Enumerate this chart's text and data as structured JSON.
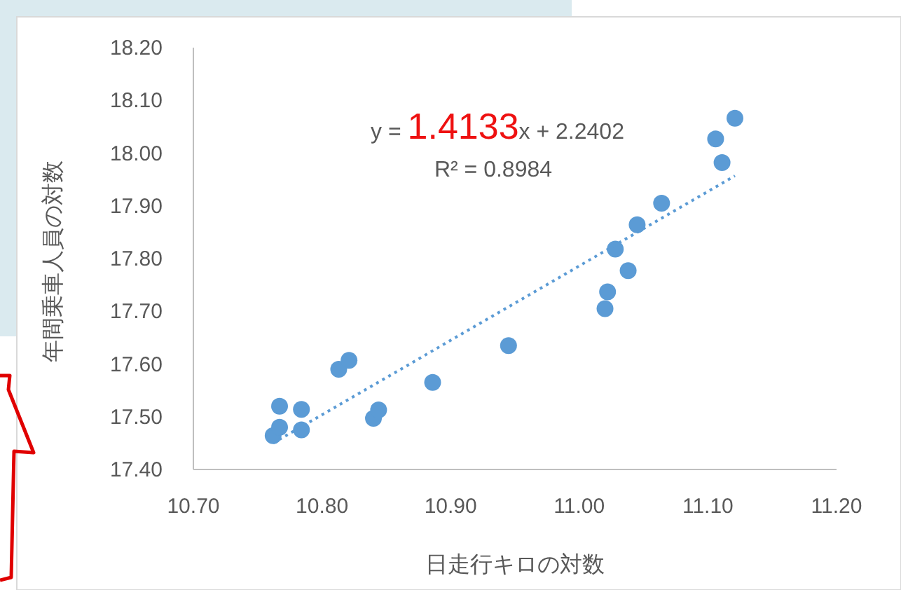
{
  "chart_data": {
    "type": "scatter",
    "xlabel": "日走行キロの対数",
    "ylabel": "年間乗車人員の対数",
    "annotations": [
      "y = 1.4133x + 2.2402",
      "R² = 0.8984"
    ],
    "xlim": [
      10.7,
      11.2
    ],
    "ylim": [
      17.4,
      18.2
    ],
    "xticks": [
      {
        "value": 10.7,
        "label": "10.70"
      },
      {
        "value": 10.8,
        "label": "10.80"
      },
      {
        "value": 10.9,
        "label": "10.90"
      },
      {
        "value": 11.0,
        "label": "11.00"
      },
      {
        "value": 11.1,
        "label": "11.10"
      },
      {
        "value": 11.2,
        "label": "11.20"
      }
    ],
    "yticks": [
      {
        "value": 17.4,
        "label": "17.40"
      },
      {
        "value": 17.5,
        "label": "17.50"
      },
      {
        "value": 17.6,
        "label": "17.60"
      },
      {
        "value": 17.7,
        "label": "17.70"
      },
      {
        "value": 17.8,
        "label": "17.80"
      },
      {
        "value": 17.9,
        "label": "17.90"
      },
      {
        "value": 18.0,
        "label": "18.00"
      },
      {
        "value": 18.1,
        "label": "18.10"
      },
      {
        "value": 18.2,
        "label": "18.20"
      }
    ],
    "marker": "circle",
    "series": [
      {
        "color": "#5b9bd5",
        "x": [
          10.762,
          10.767,
          10.767,
          10.784,
          10.784,
          10.813,
          10.821,
          10.84,
          10.844,
          10.886,
          10.945,
          11.02,
          11.022,
          11.038,
          11.028,
          11.045,
          11.064,
          11.111,
          11.106,
          11.121
        ],
        "values": [
          17.464,
          17.48,
          17.52,
          17.514,
          17.475,
          17.59,
          17.607,
          17.497,
          17.513,
          17.565,
          17.635,
          17.705,
          17.737,
          17.777,
          17.818,
          17.864,
          17.905,
          17.982,
          18.027,
          18.066
        ]
      },
      {
        "type": "line",
        "marker": "none",
        "line_style": "dotted",
        "color": "#5b9bd5",
        "x": [
          10.762,
          11.121
        ],
        "values": [
          17.45,
          17.957
        ]
      }
    ]
  }
}
